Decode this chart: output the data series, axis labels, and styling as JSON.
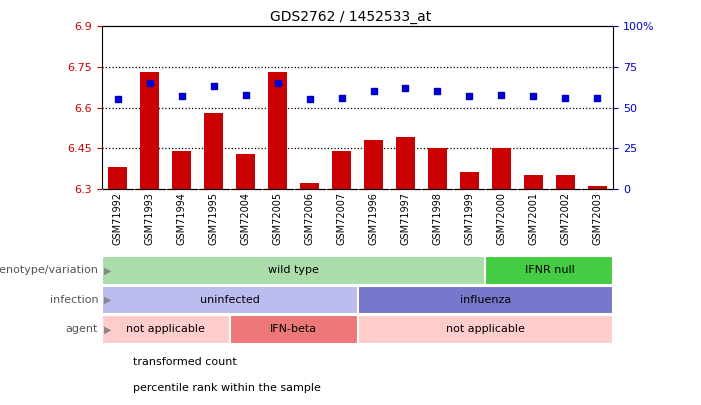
{
  "title": "GDS2762 / 1452533_at",
  "samples": [
    "GSM71992",
    "GSM71993",
    "GSM71994",
    "GSM71995",
    "GSM72004",
    "GSM72005",
    "GSM72006",
    "GSM72007",
    "GSM71996",
    "GSM71997",
    "GSM71998",
    "GSM71999",
    "GSM72000",
    "GSM72001",
    "GSM72002",
    "GSM72003"
  ],
  "transformed_count": [
    6.38,
    6.73,
    6.44,
    6.58,
    6.43,
    6.73,
    6.32,
    6.44,
    6.48,
    6.49,
    6.45,
    6.36,
    6.45,
    6.35,
    6.35,
    6.31
  ],
  "percentile_rank": [
    55,
    65,
    57,
    63,
    58,
    65,
    55,
    56,
    60,
    62,
    60,
    57,
    58,
    57,
    56,
    56
  ],
  "ylim_left": [
    6.3,
    6.9
  ],
  "ylim_right": [
    0,
    100
  ],
  "yticks_left": [
    6.3,
    6.45,
    6.6,
    6.75,
    6.9
  ],
  "yticks_right": [
    0,
    25,
    50,
    75,
    100
  ],
  "bar_color": "#cc0000",
  "dot_color": "#0000cc",
  "bg_color": "#ffffff",
  "plot_bg": "#ffffff",
  "xticklabel_bg": "#cccccc",
  "annotation_rows": [
    {
      "label": "genotype/variation",
      "segments": [
        {
          "text": "wild type",
          "start": 0,
          "end": 12,
          "color": "#aaddaa"
        },
        {
          "text": "IFNR null",
          "start": 12,
          "end": 16,
          "color": "#44cc44"
        }
      ]
    },
    {
      "label": "infection",
      "segments": [
        {
          "text": "uninfected",
          "start": 0,
          "end": 8,
          "color": "#bbbbee"
        },
        {
          "text": "influenza",
          "start": 8,
          "end": 16,
          "color": "#7777cc"
        }
      ]
    },
    {
      "label": "agent",
      "segments": [
        {
          "text": "not applicable",
          "start": 0,
          "end": 4,
          "color": "#ffcccc"
        },
        {
          "text": "IFN-beta",
          "start": 4,
          "end": 8,
          "color": "#ee7777"
        },
        {
          "text": "not applicable",
          "start": 8,
          "end": 16,
          "color": "#ffcccc"
        }
      ]
    }
  ],
  "legend_items": [
    {
      "color": "#cc0000",
      "label": "transformed count"
    },
    {
      "color": "#0000cc",
      "label": "percentile rank within the sample"
    }
  ]
}
